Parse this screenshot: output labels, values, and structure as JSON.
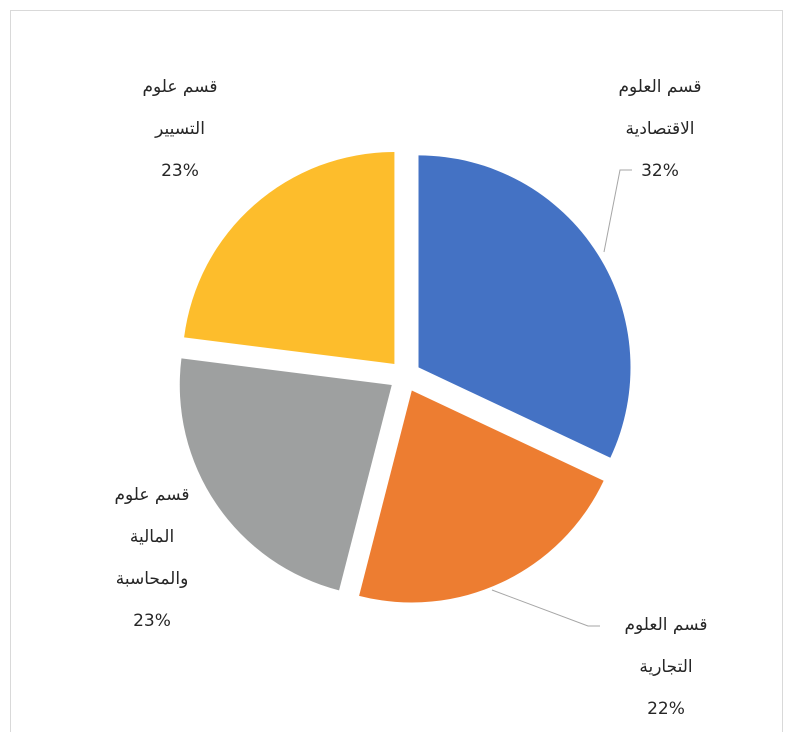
{
  "chart_data": {
    "type": "pie",
    "categories": [
      "قسم العلوم الاقتصادية",
      "قسم العلوم التجارية",
      "قسم علوم المالية والمحاسبة",
      "قسم علوم التسيير"
    ],
    "values": [
      32,
      22,
      23,
      23
    ],
    "value_labels": [
      "32%",
      "22%",
      "23%",
      "23%"
    ],
    "colors": [
      "#4472c4",
      "#ed7d31",
      "#9ea0a0",
      "#fdbd2c"
    ]
  }
}
